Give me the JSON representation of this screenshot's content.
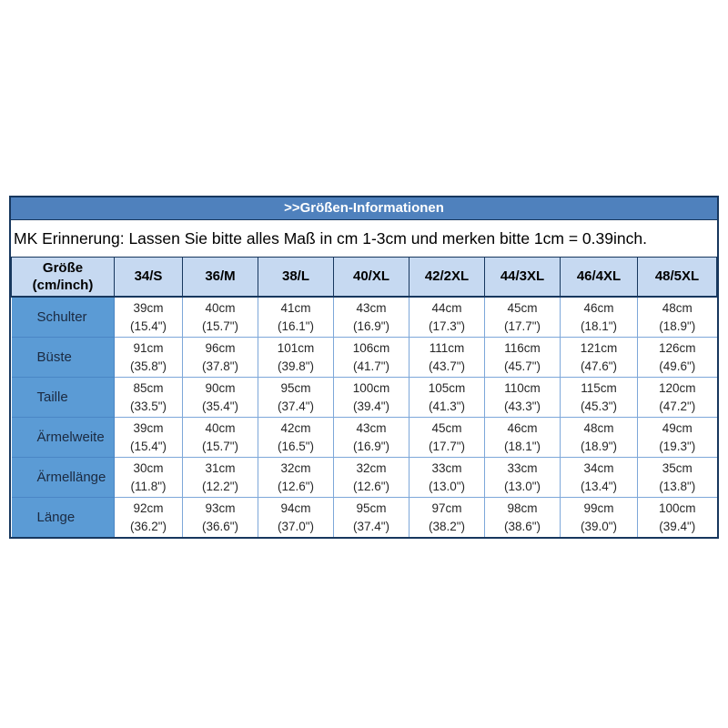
{
  "size_chart": {
    "title": ">>Größen-Informationen",
    "notice": "MK Erinnerung: Lassen Sie bitte alles Maß in cm 1-3cm und merken bitte 1cm = 0.39inch.",
    "corner_header": {
      "line1": "Größe",
      "line2": "(cm/inch)"
    },
    "size_columns": [
      "34/S",
      "36/M",
      "38/L",
      "40/XL",
      "42/2XL",
      "44/3XL",
      "46/4XL",
      "48/5XL"
    ],
    "rows": [
      {
        "label": "Schulter",
        "cells": [
          {
            "cm": "39cm",
            "inch": "(15.4\")"
          },
          {
            "cm": "40cm",
            "inch": "(15.7\")"
          },
          {
            "cm": "41cm",
            "inch": "(16.1\")"
          },
          {
            "cm": "43cm",
            "inch": "(16.9\")"
          },
          {
            "cm": "44cm",
            "inch": "(17.3\")"
          },
          {
            "cm": "45cm",
            "inch": "(17.7\")"
          },
          {
            "cm": "46cm",
            "inch": "(18.1\")"
          },
          {
            "cm": "48cm",
            "inch": "(18.9\")"
          }
        ]
      },
      {
        "label": "Büste",
        "cells": [
          {
            "cm": "91cm",
            "inch": "(35.8\")"
          },
          {
            "cm": "96cm",
            "inch": "(37.8\")"
          },
          {
            "cm": "101cm",
            "inch": "(39.8\")"
          },
          {
            "cm": "106cm",
            "inch": "(41.7\")"
          },
          {
            "cm": "111cm",
            "inch": "(43.7\")"
          },
          {
            "cm": "116cm",
            "inch": "(45.7\")"
          },
          {
            "cm": "121cm",
            "inch": "(47.6\")"
          },
          {
            "cm": "126cm",
            "inch": "(49.6\")"
          }
        ]
      },
      {
        "label": "Taille",
        "cells": [
          {
            "cm": "85cm",
            "inch": "(33.5\")"
          },
          {
            "cm": "90cm",
            "inch": "(35.4\")"
          },
          {
            "cm": "95cm",
            "inch": "(37.4\")"
          },
          {
            "cm": "100cm",
            "inch": "(39.4\")"
          },
          {
            "cm": "105cm",
            "inch": "(41.3\")"
          },
          {
            "cm": "110cm",
            "inch": "(43.3\")"
          },
          {
            "cm": "115cm",
            "inch": "(45.3\")"
          },
          {
            "cm": "120cm",
            "inch": "(47.2\")"
          }
        ]
      },
      {
        "label": "Ärmelweite",
        "cells": [
          {
            "cm": "39cm",
            "inch": "(15.4\")"
          },
          {
            "cm": "40cm",
            "inch": "(15.7\")"
          },
          {
            "cm": "42cm",
            "inch": "(16.5\")"
          },
          {
            "cm": "43cm",
            "inch": "(16.9\")"
          },
          {
            "cm": "45cm",
            "inch": "(17.7\")"
          },
          {
            "cm": "46cm",
            "inch": "(18.1\")"
          },
          {
            "cm": "48cm",
            "inch": "(18.9\")"
          },
          {
            "cm": "49cm",
            "inch": "(19.3\")"
          }
        ]
      },
      {
        "label": "Ärmellänge",
        "cells": [
          {
            "cm": "30cm",
            "inch": "(11.8\")"
          },
          {
            "cm": "31cm",
            "inch": "(12.2\")"
          },
          {
            "cm": "32cm",
            "inch": "(12.6\")"
          },
          {
            "cm": "32cm",
            "inch": "(12.6\")"
          },
          {
            "cm": "33cm",
            "inch": "(13.0\")"
          },
          {
            "cm": "33cm",
            "inch": "(13.0\")"
          },
          {
            "cm": "34cm",
            "inch": "(13.4\")"
          },
          {
            "cm": "35cm",
            "inch": "(13.8\")"
          }
        ]
      },
      {
        "label": "Länge",
        "cells": [
          {
            "cm": "92cm",
            "inch": "(36.2\")"
          },
          {
            "cm": "93cm",
            "inch": "(36.6\")"
          },
          {
            "cm": "94cm",
            "inch": "(37.0\")"
          },
          {
            "cm": "95cm",
            "inch": "(37.4\")"
          },
          {
            "cm": "97cm",
            "inch": "(38.2\")"
          },
          {
            "cm": "98cm",
            "inch": "(38.6\")"
          },
          {
            "cm": "99cm",
            "inch": "(39.0\")"
          },
          {
            "cm": "100cm",
            "inch": "(39.4\")"
          }
        ]
      }
    ],
    "colors": {
      "title_bar_bg": "#4f81bd",
      "title_text": "#ffffff",
      "outer_border": "#17375e",
      "header_bg": "#c6d9f1",
      "row_label_bg": "#5b9bd5",
      "grid_line": "#7da7d9",
      "cell_text": "#262626"
    }
  }
}
